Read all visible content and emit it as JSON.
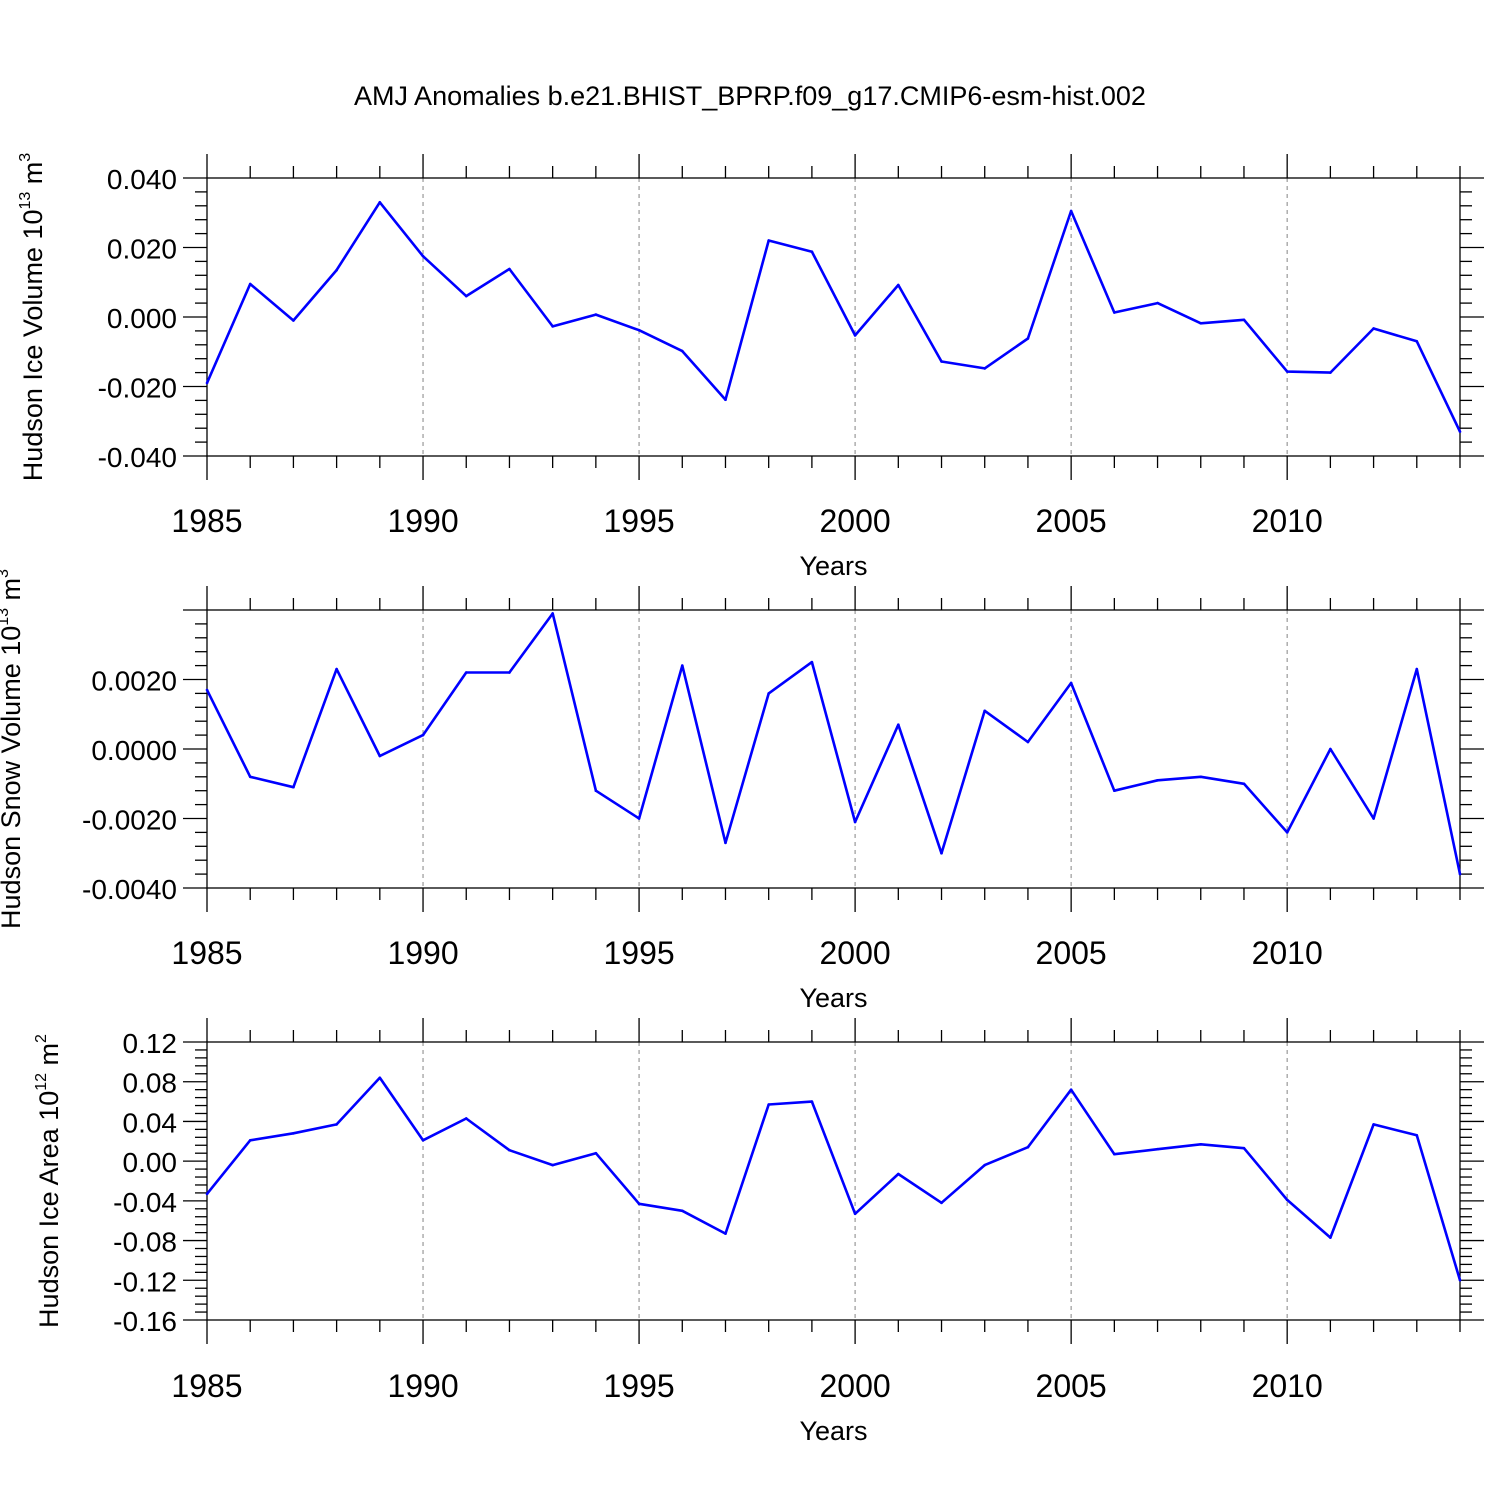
{
  "title": "AMJ Anomalies b.e21.BHIST_BPRP.f09_g17.CMIP6-esm-hist.002",
  "colors": {
    "line": "#0000ff",
    "grid": "#999999"
  },
  "chart_data": [
    {
      "type": "line",
      "ylabel": {
        "text": "Hudson Ice Volume 10",
        "exp": "13",
        "unit": " m",
        "unit_exp": "3"
      },
      "xlabel": "Years",
      "xlim": [
        1985,
        2014
      ],
      "ylim": [
        -0.04,
        0.04
      ],
      "xticks": [
        1985,
        1990,
        1995,
        2000,
        2005,
        2010
      ],
      "xtick_labels": [
        "1985",
        "1990",
        "1995",
        "2000",
        "2005",
        "2010"
      ],
      "yticks": [
        -0.04,
        -0.02,
        0.0,
        0.02,
        0.04
      ],
      "ytick_labels": [
        "-0.040",
        "-0.020",
        "0.000",
        "0.020",
        "0.040"
      ],
      "x": [
        1985,
        1986,
        1987,
        1988,
        1989,
        1990,
        1991,
        1992,
        1993,
        1994,
        1995,
        1996,
        1997,
        1998,
        1999,
        2000,
        2001,
        2002,
        2003,
        2004,
        2005,
        2006,
        2007,
        2008,
        2009,
        2010,
        2011,
        2012,
        2013,
        2014
      ],
      "series": [
        {
          "values": [
            -0.019,
            0.0095,
            -0.001,
            0.0135,
            0.033,
            0.0175,
            0.006,
            0.0138,
            -0.0027,
            0.0007,
            -0.0038,
            -0.0098,
            -0.0238,
            0.022,
            0.0188,
            -0.0053,
            0.0092,
            -0.0128,
            -0.0148,
            -0.0062,
            0.0305,
            0.0013,
            0.004,
            -0.0018,
            -0.0008,
            -0.0157,
            -0.016,
            -0.0033,
            -0.007,
            -0.033
          ]
        }
      ]
    },
    {
      "type": "line",
      "ylabel": {
        "text": "Hudson Snow Volume 10",
        "exp": "13",
        "unit": " m",
        "unit_exp": "3"
      },
      "xlabel": "Years",
      "xlim": [
        1985,
        2014
      ],
      "ylim": [
        -0.004,
        0.004
      ],
      "xticks": [
        1985,
        1990,
        1995,
        2000,
        2005,
        2010
      ],
      "xtick_labels": [
        "1985",
        "1990",
        "1995",
        "2000",
        "2005",
        "2010"
      ],
      "yticks": [
        -0.004,
        -0.002,
        0.0,
        0.002
      ],
      "ytick_labels": [
        "-0.0040",
        "-0.0020",
        "0.0000",
        "0.0020"
      ],
      "x": [
        1985,
        1986,
        1987,
        1988,
        1989,
        1990,
        1991,
        1992,
        1993,
        1994,
        1995,
        1996,
        1997,
        1998,
        1999,
        2000,
        2001,
        2002,
        2003,
        2004,
        2005,
        2006,
        2007,
        2008,
        2009,
        2010,
        2011,
        2012,
        2013,
        2014
      ],
      "series": [
        {
          "values": [
            0.0017,
            -0.0008,
            -0.0011,
            0.0023,
            -0.0002,
            0.0004,
            0.0022,
            0.0022,
            0.0039,
            -0.0012,
            -0.002,
            0.0024,
            -0.0027,
            0.0016,
            0.0025,
            -0.0021,
            0.0007,
            -0.003,
            0.0011,
            0.0002,
            0.0019,
            -0.0012,
            -0.0009,
            -0.0008,
            -0.001,
            -0.0024,
            0.0,
            -0.002,
            0.0023,
            -0.0036
          ]
        }
      ]
    },
    {
      "type": "line",
      "ylabel": {
        "text": "Hudson Ice Area 10",
        "exp": "12",
        "unit": " m",
        "unit_exp": "2"
      },
      "xlabel": "Years",
      "xlim": [
        1985,
        2014
      ],
      "ylim": [
        -0.16,
        0.12
      ],
      "xticks": [
        1985,
        1990,
        1995,
        2000,
        2005,
        2010
      ],
      "xtick_labels": [
        "1985",
        "1990",
        "1995",
        "2000",
        "2005",
        "2010"
      ],
      "yticks": [
        -0.16,
        -0.12,
        -0.08,
        -0.04,
        0.0,
        0.04,
        0.08,
        0.12
      ],
      "ytick_labels": [
        "-0.16",
        "-0.12",
        "-0.08",
        "-0.04",
        "0.00",
        "0.04",
        "0.08",
        "0.12"
      ],
      "x": [
        1985,
        1986,
        1987,
        1988,
        1989,
        1990,
        1991,
        1992,
        1993,
        1994,
        1995,
        1996,
        1997,
        1998,
        1999,
        2000,
        2001,
        2002,
        2003,
        2004,
        2005,
        2006,
        2007,
        2008,
        2009,
        2010,
        2011,
        2012,
        2013,
        2014
      ],
      "series": [
        {
          "values": [
            -0.033,
            0.021,
            0.028,
            0.037,
            0.084,
            0.021,
            0.043,
            0.011,
            -0.004,
            0.008,
            -0.043,
            -0.05,
            -0.073,
            0.057,
            0.06,
            -0.053,
            -0.013,
            -0.042,
            -0.004,
            0.014,
            0.072,
            0.007,
            0.012,
            0.017,
            0.013,
            -0.039,
            -0.077,
            0.037,
            0.026,
            -0.12
          ]
        }
      ]
    }
  ]
}
